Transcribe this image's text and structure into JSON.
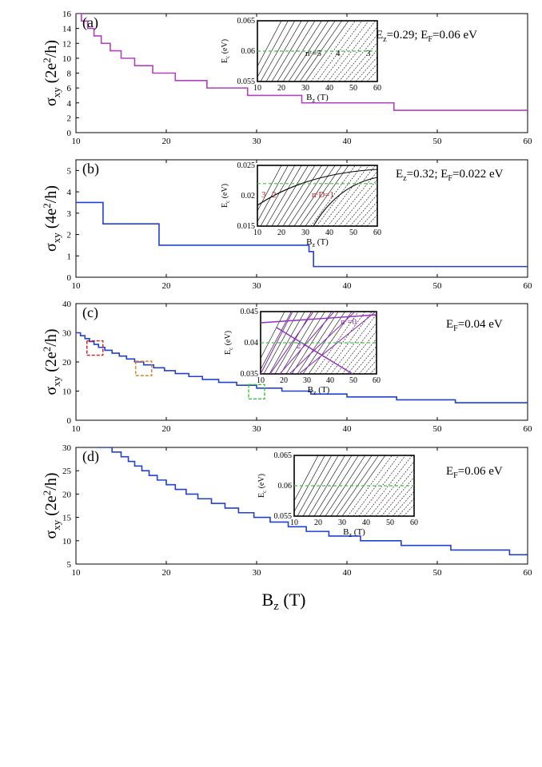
{
  "figure": {
    "xlabel_main": "B",
    "xlabel_sub": "z",
    "xlabel_unit": " (T)",
    "colors": {
      "purple": "#b040c0",
      "blue": "#2040d0",
      "green": "#40c040",
      "red": "#c02020",
      "orange": "#e08020",
      "inset_purple": "#9030c0"
    }
  },
  "chart_data": [
    {
      "type": "line",
      "panel": "a",
      "panel_label": "(a)",
      "annotation": "E",
      "annotation_parts": [
        "E",
        "z",
        "=0.29; E",
        "F",
        "=0.06 eV"
      ],
      "ylabel_parts": [
        "σ",
        "xy",
        " (2e",
        "2",
        "/h)"
      ],
      "xlim": [
        10,
        60
      ],
      "ylim": [
        0,
        16
      ],
      "x_ticks": [
        10,
        20,
        30,
        40,
        50,
        60
      ],
      "y_ticks": [
        0,
        2,
        4,
        6,
        8,
        10,
        12,
        14,
        16
      ],
      "series_color": "purple",
      "steps": [
        [
          10,
          16
        ],
        [
          10.6,
          15
        ],
        [
          11.3,
          14
        ],
        [
          12,
          13
        ],
        [
          12.8,
          12
        ],
        [
          13.8,
          11
        ],
        [
          15,
          10
        ],
        [
          16.5,
          9
        ],
        [
          18.5,
          8
        ],
        [
          21,
          7
        ],
        [
          24.5,
          6
        ],
        [
          29,
          5
        ],
        [
          35,
          4
        ],
        [
          45.2,
          3
        ],
        [
          60,
          3
        ]
      ],
      "inset": {
        "ylabel": "E",
        "ylabel_sub": "c",
        "ylabel_unit": " (eV)",
        "xlabel": "B",
        "xlabel_sub": "z",
        "xlabel_unit": " (T)",
        "xlim": [
          10,
          60
        ],
        "ylim": [
          0.055,
          0.065
        ],
        "x_ticks": [
          10,
          20,
          30,
          40,
          50,
          60
        ],
        "y_ticks": [
          0.055,
          0.06,
          0.065
        ],
        "ef": 0.06,
        "labels": [
          "nᶜ=5",
          "4",
          "3"
        ]
      }
    },
    {
      "type": "line",
      "panel": "b",
      "panel_label": "(b)",
      "annotation_parts": [
        "E",
        "z",
        "=0.32; E",
        "F",
        "=0.022 eV"
      ],
      "ylabel_parts": [
        "σ",
        "xy",
        " (4e",
        "2",
        "/h)"
      ],
      "xlim": [
        10,
        60
      ],
      "ylim": [
        0,
        5.5
      ],
      "x_ticks": [
        10,
        20,
        30,
        40,
        50,
        60
      ],
      "y_ticks": [
        0,
        1,
        2,
        3,
        4,
        5
      ],
      "series_color": "blue",
      "steps": [
        [
          10,
          3.5
        ],
        [
          13,
          2.5
        ],
        [
          19.2,
          1.5
        ],
        [
          35.8,
          1.2
        ],
        [
          36.3,
          0.5
        ],
        [
          60,
          0.5
        ]
      ],
      "inset": {
        "ylabel": "E",
        "ylabel_sub": "c",
        "ylabel_unit": " (eV)",
        "xlabel": "B",
        "xlabel_sub": "z",
        "xlabel_unit": " (T)",
        "xlim": [
          10,
          60
        ],
        "ylim": [
          0.015,
          0.025
        ],
        "x_ticks": [
          10,
          20,
          30,
          40,
          50,
          60
        ],
        "y_ticks": [
          0.015,
          0.02,
          0.025
        ],
        "ef": 0.022,
        "labels": [
          "3",
          "2",
          "nᶜD=1"
        ]
      }
    },
    {
      "type": "line",
      "panel": "c",
      "panel_label": "(c)",
      "annotation_parts": [
        "E",
        "F",
        "=0.04 eV"
      ],
      "ylabel_parts": [
        "σ",
        "xy",
        " (2e",
        "2",
        "/h)"
      ],
      "xlim": [
        10,
        60
      ],
      "ylim": [
        0,
        40
      ],
      "x_ticks": [
        10,
        20,
        30,
        40,
        50,
        60
      ],
      "y_ticks": [
        0,
        10,
        20,
        30,
        40
      ],
      "series_color": "blue",
      "steps": [
        [
          10,
          30
        ],
        [
          10.5,
          29
        ],
        [
          11,
          28
        ],
        [
          11.5,
          27
        ],
        [
          12,
          26
        ],
        [
          12.5,
          25
        ],
        [
          13.2,
          24
        ],
        [
          14,
          23
        ],
        [
          14.8,
          22
        ],
        [
          15.6,
          21
        ],
        [
          16.5,
          20
        ],
        [
          17.5,
          19
        ],
        [
          18.6,
          18
        ],
        [
          19.8,
          17
        ],
        [
          21,
          16
        ],
        [
          22.5,
          15
        ],
        [
          24,
          14
        ],
        [
          25.8,
          13
        ],
        [
          27.8,
          12
        ],
        [
          30,
          11
        ],
        [
          32.8,
          10
        ],
        [
          36,
          9
        ],
        [
          40,
          8
        ],
        [
          45.5,
          7
        ],
        [
          52,
          6
        ],
        [
          60,
          6
        ]
      ],
      "inset": {
        "ylabel": "E",
        "ylabel_sub": "c",
        "ylabel_unit": " (eV)",
        "xlabel": "B",
        "xlabel_sub": "z",
        "xlabel_unit": " (T)",
        "xlim": [
          10,
          60
        ],
        "ylim": [
          0.035,
          0.045
        ],
        "x_ticks": [
          10,
          20,
          30,
          40,
          50,
          60
        ],
        "y_ticks": [
          0.035,
          0.04,
          0.045
        ],
        "ef": 0.04,
        "labels": [
          "nᶜ=0",
          "2"
        ]
      }
    },
    {
      "type": "line",
      "panel": "d",
      "panel_label": "(d)",
      "annotation_parts": [
        "E",
        "F",
        "=0.06 eV"
      ],
      "ylabel_parts": [
        "σ",
        "xy",
        " (2e",
        "2",
        "/h)"
      ],
      "xlim": [
        10,
        60
      ],
      "ylim": [
        5,
        30
      ],
      "x_ticks": [
        10,
        20,
        30,
        40,
        50,
        60
      ],
      "y_ticks": [
        5,
        10,
        15,
        20,
        25,
        30
      ],
      "series_color": "blue",
      "steps": [
        [
          12.3,
          30
        ],
        [
          14,
          29
        ],
        [
          15,
          28
        ],
        [
          15.8,
          27
        ],
        [
          16.5,
          26
        ],
        [
          17.3,
          25
        ],
        [
          18.1,
          24
        ],
        [
          19,
          23
        ],
        [
          20,
          22
        ],
        [
          21,
          21
        ],
        [
          22.2,
          20
        ],
        [
          23.5,
          19
        ],
        [
          25,
          18
        ],
        [
          26.5,
          17
        ],
        [
          28,
          16
        ],
        [
          29.7,
          15
        ],
        [
          31.5,
          14
        ],
        [
          33.5,
          13
        ],
        [
          35.5,
          12
        ],
        [
          38,
          11
        ],
        [
          41.5,
          10
        ],
        [
          46,
          9
        ],
        [
          51.5,
          8
        ],
        [
          58,
          7
        ],
        [
          60,
          7
        ]
      ],
      "inset": {
        "ylabel": "E",
        "ylabel_sub": "c",
        "ylabel_unit": " (eV)",
        "xlabel": "B",
        "xlabel_sub": "z",
        "xlabel_unit": " (T)",
        "xlim": [
          10,
          60
        ],
        "ylim": [
          0.055,
          0.065
        ],
        "x_ticks": [
          10,
          20,
          30,
          40,
          50,
          60
        ],
        "y_ticks": [
          0.055,
          0.06,
          0.065
        ],
        "ef": 0.06,
        "labels": []
      }
    }
  ]
}
